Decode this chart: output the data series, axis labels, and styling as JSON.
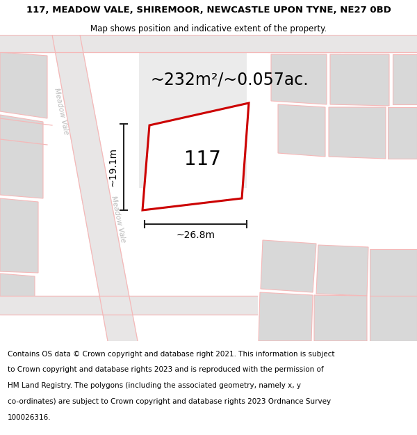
{
  "title": "117, MEADOW VALE, SHIREMOOR, NEWCASTLE UPON TYNE, NE27 0BD",
  "subtitle": "Map shows position and indicative extent of the property.",
  "area_text": "~232m²/~0.057ac.",
  "dim_width": "~26.8m",
  "dim_height": "~19.1m",
  "property_number": "117",
  "copyright_lines": [
    "Contains OS data © Crown copyright and database right 2021. This information is subject",
    "to Crown copyright and database rights 2023 and is reproduced with the permission of",
    "HM Land Registry. The polygons (including the associated geometry, namely x, y",
    "co-ordinates) are subject to Crown copyright and database rights 2023 Ordnance Survey",
    "100026316."
  ],
  "map_bg": "#f0eeee",
  "parcel_fill": "#d8d8d8",
  "road_fill": "#e8e6e6",
  "road_stroke": "#f5b8b8",
  "red_outline": "#cc0000",
  "dim_line_color": "#222222",
  "street_label_color": "#bbbbbb",
  "title_fontsize": 9.5,
  "subtitle_fontsize": 8.5,
  "area_fontsize": 17,
  "number_fontsize": 20,
  "dim_fontsize": 10,
  "street_fontsize": 7.5,
  "copyright_fontsize": 7.5
}
